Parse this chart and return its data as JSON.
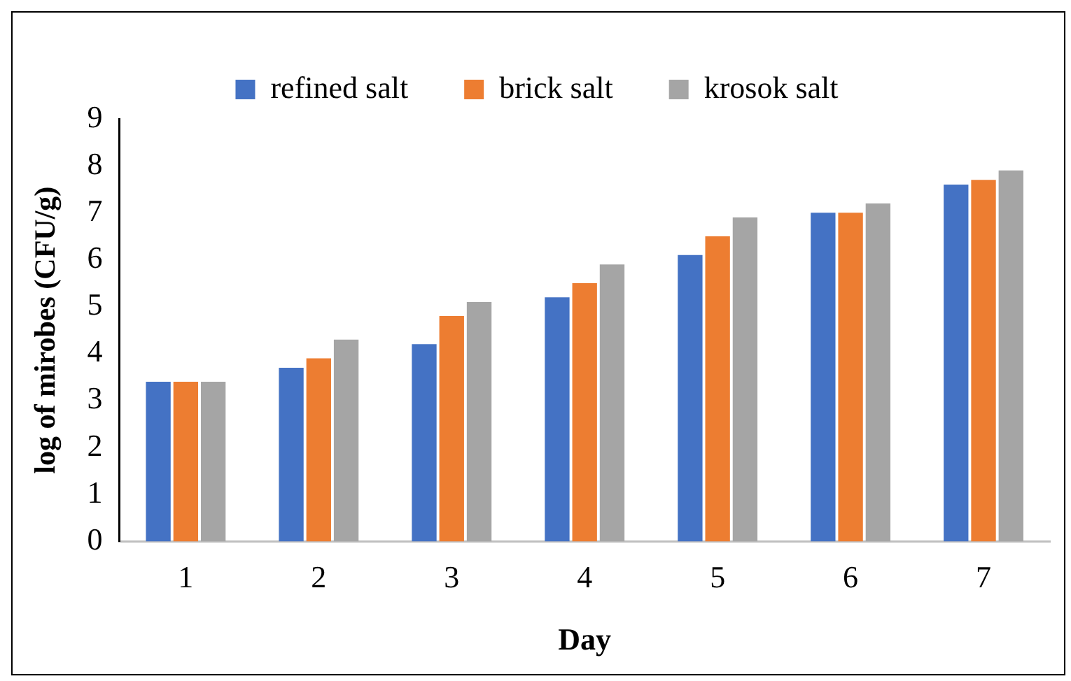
{
  "chart_data": {
    "type": "bar",
    "xlabel": "Day",
    "ylabel": "log of mirobes (CFU/g)",
    "categories": [
      "1",
      "2",
      "3",
      "4",
      "5",
      "6",
      "7"
    ],
    "series": [
      {
        "name": "refined salt",
        "color": "#4472c4",
        "values": [
          3.4,
          3.7,
          4.2,
          5.2,
          6.1,
          7.0,
          7.6
        ]
      },
      {
        "name": "brick salt",
        "color": "#ed7d31",
        "values": [
          3.4,
          3.9,
          4.8,
          5.5,
          6.5,
          7.0,
          7.7
        ]
      },
      {
        "name": "krosok salt",
        "color": "#a5a5a5",
        "values": [
          3.4,
          4.3,
          5.1,
          5.9,
          6.9,
          7.2,
          7.9
        ]
      }
    ],
    "ylim": [
      0,
      9
    ],
    "yticks": [
      0,
      1,
      2,
      3,
      4,
      5,
      6,
      7,
      8,
      9
    ],
    "grid": false,
    "legend": "top"
  }
}
